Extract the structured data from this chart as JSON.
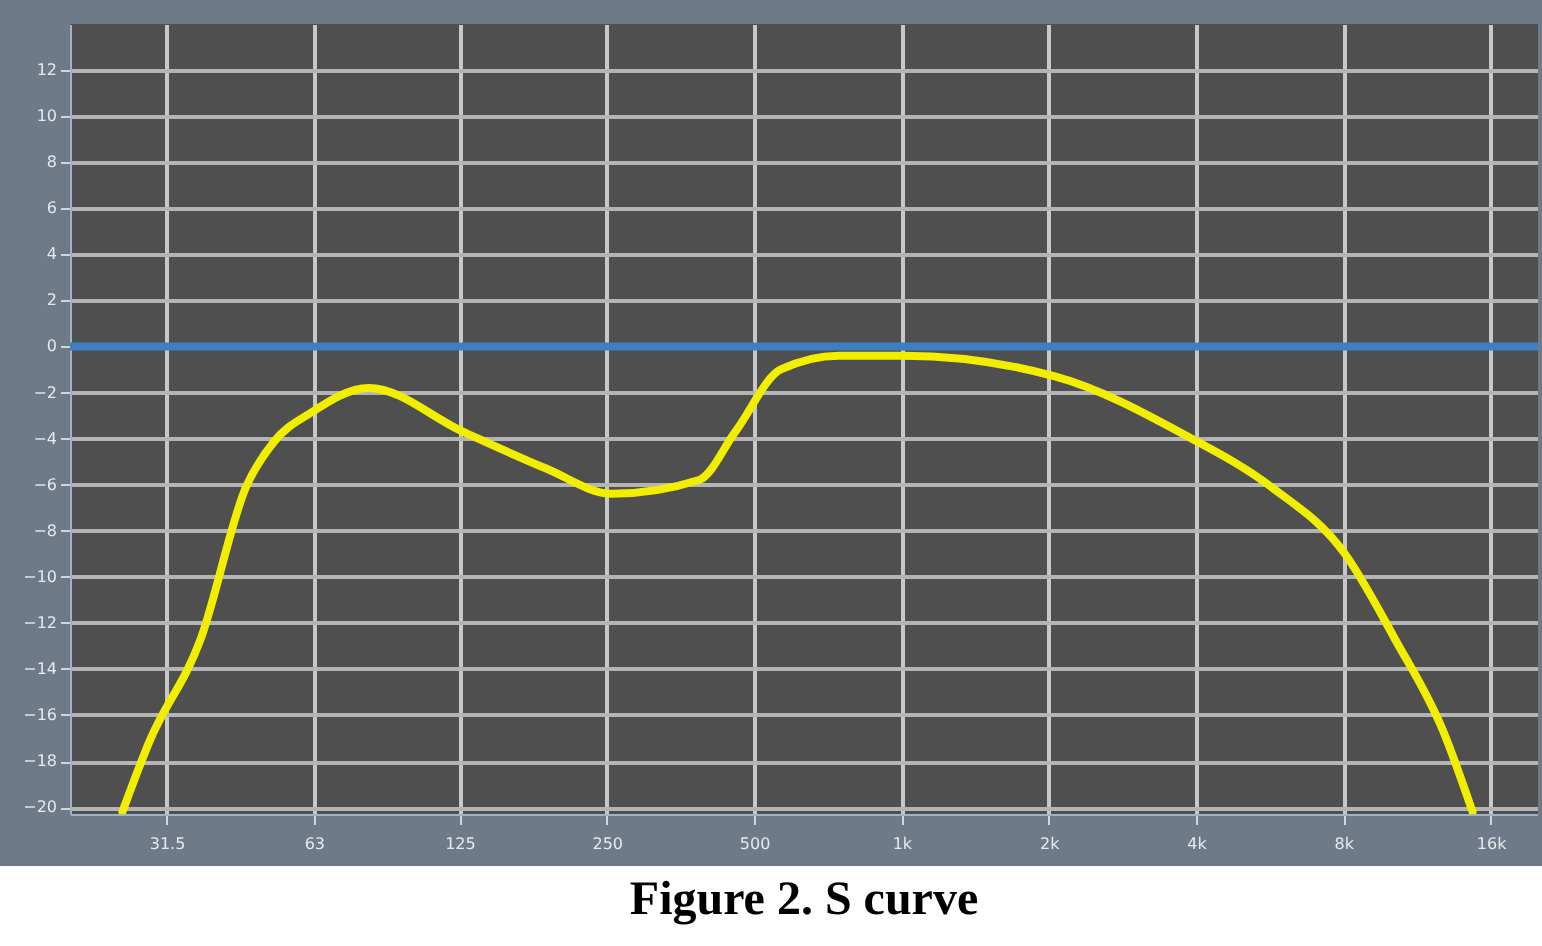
{
  "chart_data": {
    "type": "line",
    "title": "Figure 2. S curve",
    "x": [
      25.6,
      29,
      37,
      45.8,
      52.4,
      61.9,
      81.6,
      127,
      188,
      256,
      386,
      458,
      567,
      746,
      1010,
      2060,
      3840,
      5700,
      8060,
      10200,
      12800,
      14700
    ],
    "series": [
      {
        "color": "#f2ee00",
        "values": [
          -20.2,
          -17.2,
          -12.7,
          -6.1,
          -4.1,
          -2.9,
          -1.8,
          -3.7,
          -5.3,
          -6.4,
          -5.8,
          -3.7,
          -1.0,
          -0.4,
          -0.4,
          -1.3,
          -3.9,
          -6.1,
          -9.0,
          -12.7,
          -16.7,
          -20.2
        ]
      }
    ],
    "log": "x",
    "xlim": [
      20,
      20000
    ],
    "ylim": [
      -20.3,
      14
    ],
    "xticks": [
      31.5,
      63,
      125,
      250,
      500,
      {
        "value": 1000,
        "label": "1k"
      },
      {
        "value": 2000,
        "label": "2k"
      },
      {
        "value": 4000,
        "label": "4k"
      },
      {
        "value": 8000,
        "label": "8k"
      },
      {
        "value": 16000,
        "label": "16k"
      }
    ],
    "yticks": [
      -20,
      -18,
      -16,
      -14,
      -12,
      -10,
      -8,
      -6,
      -4,
      -2,
      0,
      2,
      4,
      6,
      8,
      10,
      12
    ],
    "ref_lines": [
      {
        "axis": "y",
        "value": 0,
        "color": "#3f7fc0"
      }
    ],
    "grid": true,
    "marker": "none",
    "line_style": "solid"
  }
}
